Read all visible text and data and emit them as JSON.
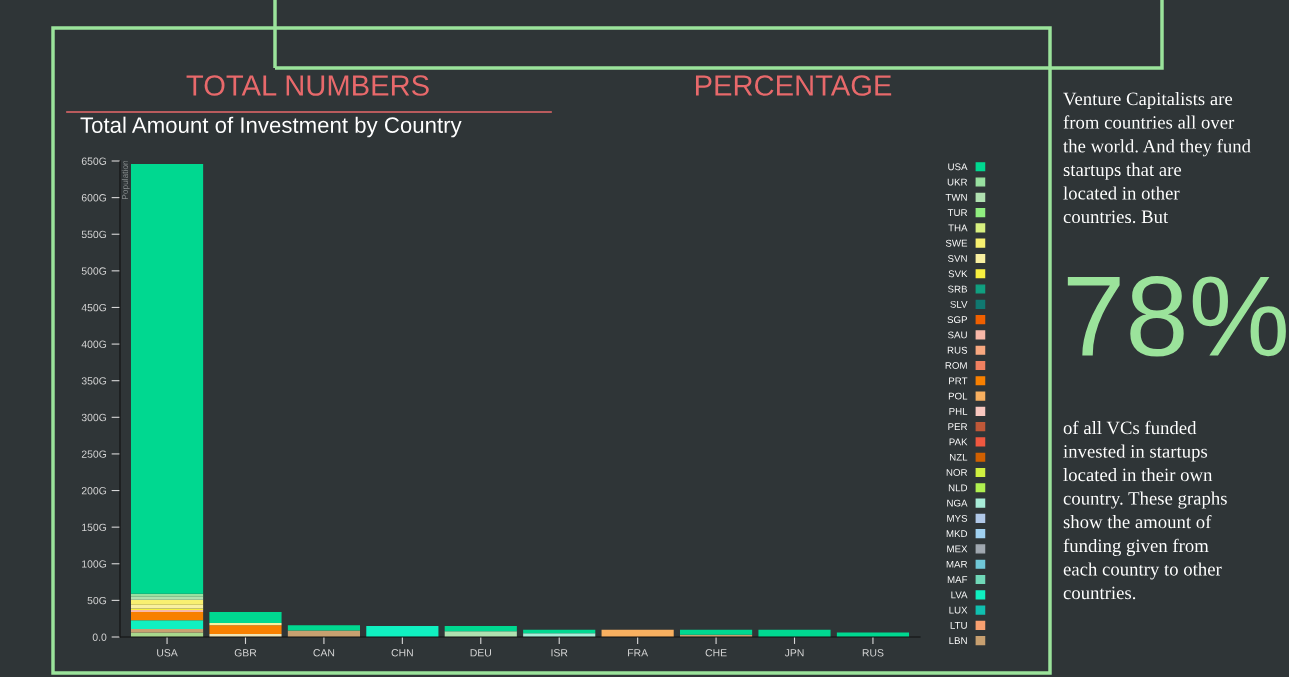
{
  "chart_data": {
    "type": "bar",
    "stacked": true,
    "title": "Total Amount of Investment by Country",
    "ylabel": "Population",
    "categories": [
      "USA",
      "GBR",
      "CAN",
      "CHN",
      "DEU",
      "ISR",
      "FRA",
      "CHE",
      "JPN",
      "RUS"
    ],
    "ylim": [
      0,
      650
    ],
    "yticks": [
      {
        "value": 0,
        "label": "0.0"
      },
      {
        "value": 50,
        "label": "50G"
      },
      {
        "value": 100,
        "label": "100G"
      },
      {
        "value": 150,
        "label": "150G"
      },
      {
        "value": 200,
        "label": "200G"
      },
      {
        "value": 250,
        "label": "250G"
      },
      {
        "value": 300,
        "label": "300G"
      },
      {
        "value": 350,
        "label": "350G"
      },
      {
        "value": 400,
        "label": "400G"
      },
      {
        "value": 450,
        "label": "450G"
      },
      {
        "value": 500,
        "label": "500G"
      },
      {
        "value": 550,
        "label": "550G"
      },
      {
        "value": 600,
        "label": "600G"
      },
      {
        "value": 650,
        "label": "650G"
      }
    ],
    "grid": false,
    "legend": "right",
    "series": [
      {
        "color": "#a8d88c",
        "values": [
          6,
          0,
          0,
          0,
          0,
          0,
          0,
          0,
          0,
          0
        ]
      },
      {
        "color": "#efe3b5",
        "values": [
          0,
          4,
          0,
          0,
          0,
          0,
          0,
          0,
          0,
          0
        ]
      },
      {
        "name": "LBN",
        "color": "#c8a070",
        "values": [
          5,
          0,
          9,
          0,
          0,
          0,
          0,
          3,
          0,
          0
        ]
      },
      {
        "name": "LTU",
        "color": "#f8a070",
        "values": [
          0,
          0,
          0,
          0,
          0,
          0,
          0,
          0,
          0,
          0
        ]
      },
      {
        "name": "LUX",
        "color": "#10c0b0",
        "values": [
          0,
          0,
          0,
          0,
          0,
          0,
          0,
          0,
          0,
          0
        ]
      },
      {
        "name": "LVA",
        "color": "#10f0c0",
        "values": [
          12,
          0,
          0,
          15,
          0,
          0,
          0,
          0,
          0,
          0
        ]
      },
      {
        "name": "MAF",
        "color": "#70d8b8",
        "values": [
          0,
          0,
          0,
          0,
          0,
          0,
          0,
          0,
          0,
          0
        ]
      },
      {
        "name": "MAR",
        "color": "#70c8d8",
        "values": [
          0,
          0,
          0,
          0,
          0,
          0,
          0,
          0,
          0,
          0
        ]
      },
      {
        "name": "MEX",
        "color": "#a0a8b0",
        "values": [
          0,
          0,
          0,
          0,
          0,
          0,
          0,
          0,
          0,
          0
        ]
      },
      {
        "name": "MKD",
        "color": "#a0d0f0",
        "values": [
          0,
          0,
          0,
          0,
          0,
          0,
          0,
          0,
          0,
          0
        ]
      },
      {
        "name": "MYS",
        "color": "#b0c8e8",
        "values": [
          0,
          0,
          0,
          0,
          0,
          0,
          0,
          0,
          0,
          0
        ]
      },
      {
        "name": "NGA",
        "color": "#a8ecd8",
        "values": [
          0,
          0,
          0,
          0,
          0,
          5,
          0,
          0,
          0,
          0
        ]
      },
      {
        "name": "NLD",
        "color": "#b0f050",
        "values": [
          0,
          0,
          0,
          0,
          0,
          0,
          0,
          0,
          0,
          0
        ]
      },
      {
        "name": "NOR",
        "color": "#d0f040",
        "values": [
          0,
          0,
          0,
          0,
          0,
          0,
          0,
          0,
          0,
          0
        ]
      },
      {
        "name": "NZL",
        "color": "#d06000",
        "values": [
          0,
          0,
          0,
          0,
          0,
          0,
          0,
          0,
          0,
          0
        ]
      },
      {
        "name": "PAK",
        "color": "#f05840",
        "values": [
          0,
          0,
          0,
          0,
          0,
          0,
          0,
          0,
          0,
          0
        ]
      },
      {
        "name": "PER",
        "color": "#c05838",
        "values": [
          0,
          0,
          0,
          0,
          0,
          0,
          0,
          0,
          0,
          0
        ]
      },
      {
        "name": "PHL",
        "color": "#f8c8c0",
        "values": [
          0,
          0,
          0,
          0,
          0,
          0,
          0,
          0,
          0,
          0
        ]
      },
      {
        "name": "POL",
        "color": "#f8b060",
        "values": [
          0,
          0,
          0,
          0,
          0,
          0,
          10,
          0,
          0,
          0
        ]
      },
      {
        "name": "PRT",
        "color": "#f88000",
        "values": [
          11,
          12,
          0,
          0,
          0,
          0,
          0,
          0,
          0,
          0
        ]
      },
      {
        "name": "ROM",
        "color": "#f08060",
        "values": [
          0,
          0,
          0,
          0,
          0,
          0,
          0,
          0,
          0,
          0
        ]
      },
      {
        "name": "RUS",
        "color": "#f8a880",
        "values": [
          0,
          0,
          0,
          0,
          0,
          0,
          0,
          0,
          0,
          0
        ]
      },
      {
        "name": "SAU",
        "color": "#f8b8a8",
        "values": [
          3,
          0,
          0,
          0,
          0,
          0,
          0,
          0,
          0,
          0
        ]
      },
      {
        "name": "SGP",
        "color": "#f06000",
        "values": [
          0,
          0,
          0,
          0,
          0,
          0,
          0,
          0,
          0,
          0
        ]
      },
      {
        "name": "SLV",
        "color": "#107870",
        "values": [
          0,
          0,
          0,
          0,
          0,
          0,
          0,
          0,
          0,
          0
        ]
      },
      {
        "name": "SRB",
        "color": "#10a080",
        "values": [
          0,
          0,
          0,
          0,
          0,
          0,
          0,
          0,
          0,
          0
        ]
      },
      {
        "name": "SVK",
        "color": "#f8f040",
        "values": [
          2,
          0,
          0,
          0,
          0,
          0,
          0,
          0,
          0,
          0
        ]
      },
      {
        "name": "SVN",
        "color": "#f8f0a0",
        "values": [
          5,
          3,
          0,
          0,
          0,
          0,
          0,
          0,
          0,
          0
        ]
      },
      {
        "name": "SWE",
        "color": "#f8f070",
        "values": [
          7,
          0,
          0,
          0,
          0,
          0,
          0,
          0,
          0,
          0
        ]
      },
      {
        "name": "THA",
        "color": "#d8f080",
        "values": [
          0,
          0,
          0,
          0,
          0,
          0,
          0,
          0,
          0,
          0
        ]
      },
      {
        "name": "TUR",
        "color": "#90ee80",
        "values": [
          0,
          0,
          0,
          0,
          0,
          0,
          0,
          0,
          0,
          0
        ]
      },
      {
        "name": "TWN",
        "color": "#b0e0b0",
        "values": [
          4,
          0,
          0,
          0,
          8,
          0,
          0,
          0,
          0,
          0
        ]
      },
      {
        "name": "UKR",
        "color": "#98e0a0",
        "values": [
          4,
          0,
          0,
          0,
          0,
          0,
          0,
          0,
          0,
          0
        ]
      },
      {
        "name": "USA",
        "color": "#00d890",
        "values": [
          587,
          15,
          7,
          0,
          7,
          5,
          0,
          7,
          10,
          6
        ]
      }
    ],
    "annotations": [
      "TOTAL NUMBERS",
      "PERCENTAGE",
      "Venture Capitalists are from countries all over the world. And they fund startups that are located in other countries. But",
      "78%",
      "of all VCs funded invested in startups located in their own country. These graphs show the amount of funding given from each country to other countries."
    ]
  }
}
